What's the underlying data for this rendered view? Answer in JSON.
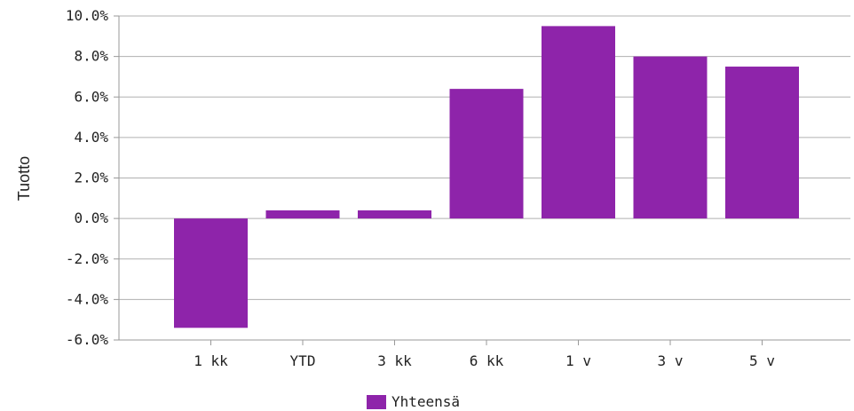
{
  "chart_data": {
    "type": "bar",
    "categories": [
      "1 kk",
      "YTD",
      "3 kk",
      "6 kk",
      "1 v",
      "3 v",
      "5 v"
    ],
    "series": [
      {
        "name": "Yhteensä",
        "values": [
          -5.4,
          0.4,
          0.4,
          6.4,
          9.5,
          8.0,
          7.5
        ]
      }
    ],
    "yticks": [
      "-6.0%",
      "-4.0%",
      "-2.0%",
      "0.0%",
      "2.0%",
      "4.0%",
      "6.0%",
      "8.0%",
      "10.0%"
    ],
    "ylabel": "Tuotto",
    "ylim": [
      -6,
      10
    ],
    "grid": true,
    "legend": "bottom-center",
    "color": "#8e24aa"
  }
}
